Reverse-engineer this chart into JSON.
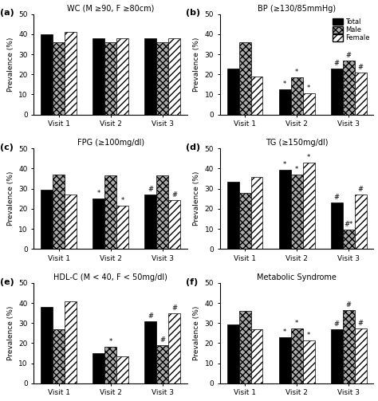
{
  "panels": [
    {
      "label": "(a)",
      "title": "WC (M ≥90, F ≥80cm)",
      "total": [
        40,
        38,
        38
      ],
      "male": [
        36,
        36,
        36
      ],
      "female": [
        41,
        38,
        38
      ],
      "ann_t": [
        "",
        "",
        ""
      ],
      "ann_m": [
        "",
        "",
        ""
      ],
      "ann_f": [
        "",
        "",
        ""
      ]
    },
    {
      "label": "(b)",
      "title": "BP (≥130/85mmHg)",
      "total": [
        23,
        12.5,
        23
      ],
      "male": [
        36,
        18.5,
        27
      ],
      "female": [
        19,
        10.5,
        21
      ],
      "ann_t": [
        "",
        "*",
        "#"
      ],
      "ann_m": [
        "",
        "*",
        "#"
      ],
      "ann_f": [
        "",
        "*",
        "#"
      ],
      "legend": true
    },
    {
      "label": "(c)",
      "title": "FPG (≥100mg/dl)",
      "total": [
        29.5,
        25,
        27
      ],
      "male": [
        37,
        36.5,
        36.5
      ],
      "female": [
        27,
        21.5,
        24.5
      ],
      "ann_t": [
        "",
        "*",
        "#"
      ],
      "ann_m": [
        "",
        "",
        ""
      ],
      "ann_f": [
        "",
        "*",
        "#"
      ]
    },
    {
      "label": "(d)",
      "title": "TG (≥150mg/dl)",
      "total": [
        33.5,
        39.5,
        23
      ],
      "male": [
        28,
        37,
        9.5
      ],
      "female": [
        36,
        43,
        27
      ],
      "ann_t": [
        "",
        "*",
        "#"
      ],
      "ann_m": [
        "",
        "*",
        "#*"
      ],
      "ann_f": [
        "",
        "*",
        "#"
      ]
    },
    {
      "label": "(e)",
      "title": "HDL-C (M < 40, F < 50mg/dl)",
      "total": [
        38,
        15,
        31
      ],
      "male": [
        27,
        18,
        19
      ],
      "female": [
        41,
        13.5,
        35
      ],
      "ann_t": [
        "",
        "",
        "#"
      ],
      "ann_m": [
        "",
        "*",
        "#"
      ],
      "ann_f": [
        "",
        "",
        "#"
      ]
    },
    {
      "label": "(f)",
      "title": "Metabolic Syndrome",
      "total": [
        29.5,
        23,
        27
      ],
      "male": [
        36,
        27.5,
        36.5
      ],
      "female": [
        27,
        21.5,
        27.5
      ],
      "ann_t": [
        "",
        "*",
        "#"
      ],
      "ann_m": [
        "",
        "*",
        "#"
      ],
      "ann_f": [
        "",
        "*",
        "#"
      ]
    }
  ],
  "ylim": [
    0,
    50
  ],
  "yticks": [
    0,
    10,
    20,
    30,
    40,
    50
  ],
  "ylabel": "Prevalence (%)",
  "bar_width": 0.23
}
